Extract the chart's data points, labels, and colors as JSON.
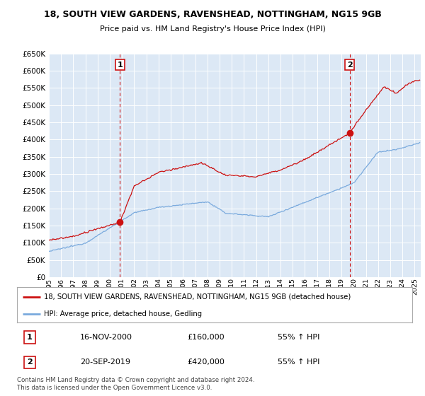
{
  "title": "18, SOUTH VIEW GARDENS, RAVENSHEAD, NOTTINGHAM, NG15 9GB",
  "subtitle": "Price paid vs. HM Land Registry's House Price Index (HPI)",
  "background_color": "#ffffff",
  "plot_bg_color": "#dce8f5",
  "grid_color": "#ffffff",
  "hpi_color": "#7aaadd",
  "price_color": "#cc1111",
  "marker1_label": "16-NOV-2000",
  "marker1_price": "£160,000",
  "marker1_hpi": "55% ↑ HPI",
  "marker2_label": "20-SEP-2019",
  "marker2_price": "£420,000",
  "marker2_hpi": "55% ↑ HPI",
  "legend_line1": "18, SOUTH VIEW GARDENS, RAVENSHEAD, NOTTINGHAM, NG15 9GB (detached house)",
  "legend_line2": "HPI: Average price, detached house, Gedling",
  "footnote": "Contains HM Land Registry data © Crown copyright and database right 2024.\nThis data is licensed under the Open Government Licence v3.0.",
  "xmin": 1995.0,
  "xmax": 2025.5,
  "ymin": 0,
  "ymax": 650000
}
